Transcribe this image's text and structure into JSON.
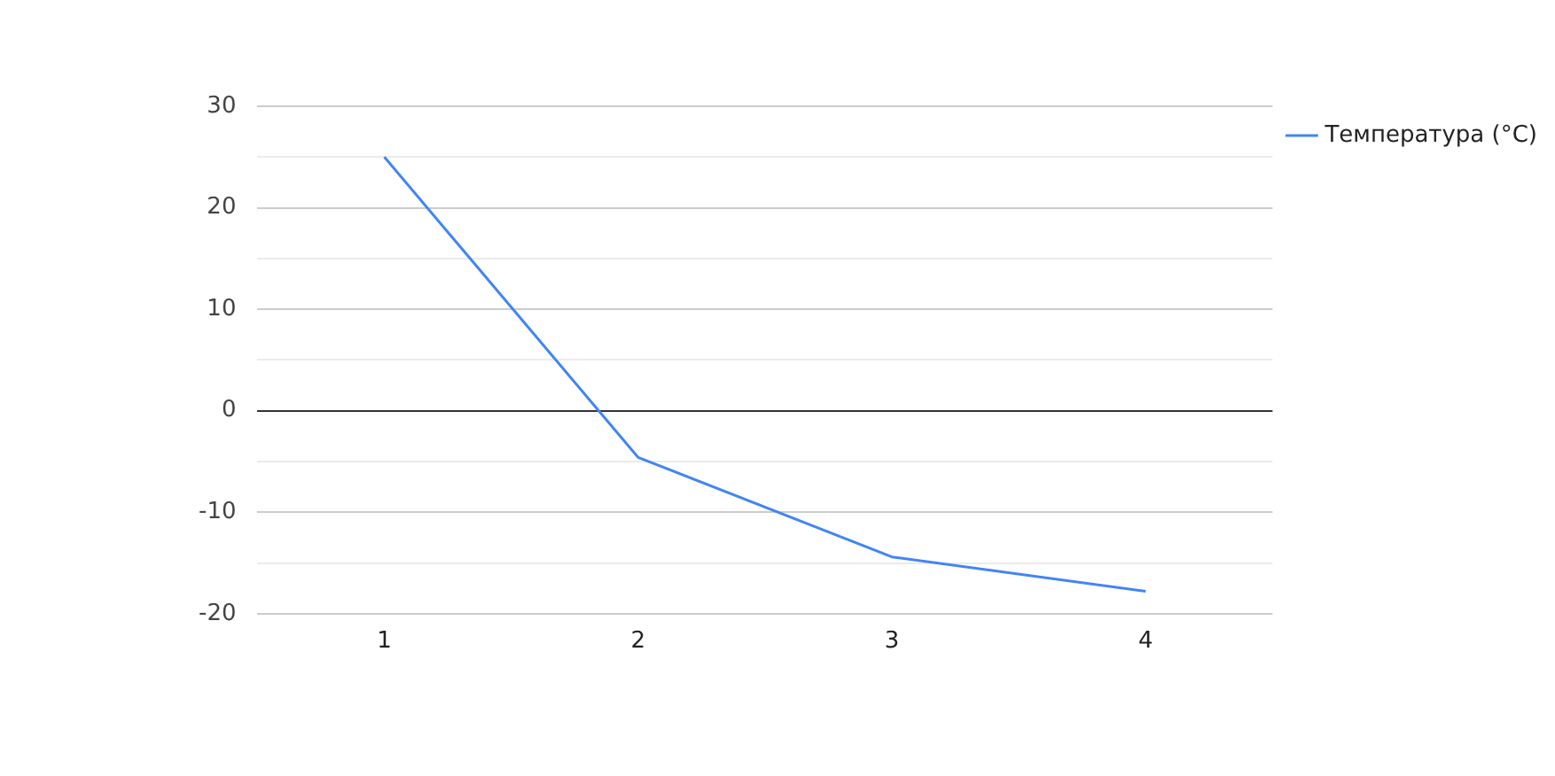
{
  "chart_data": {
    "type": "line",
    "categories": [
      "1",
      "2",
      "3",
      "4"
    ],
    "series": [
      {
        "name": "Температура (°C)",
        "color": "#4285f4",
        "values": [
          25,
          -4.6,
          -14.4,
          -17.8
        ]
      }
    ],
    "ylim": [
      -20,
      30
    ],
    "yticks": [
      -20,
      {
        "value": -15,
        "label": null
      },
      -10,
      {
        "value": -5,
        "label": null
      },
      0,
      {
        "value": 5,
        "label": null
      },
      10,
      {
        "value": 15,
        "label": null
      },
      20,
      {
        "value": 25,
        "label": null
      },
      30
    ],
    "grid": "y",
    "legend": "right",
    "marker": "none",
    "line_style": "solid"
  }
}
